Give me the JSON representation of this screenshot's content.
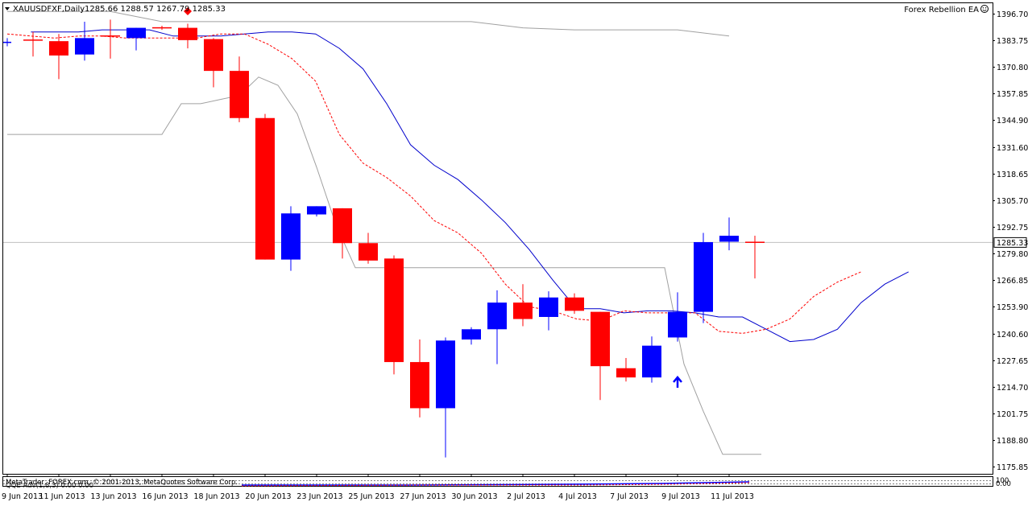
{
  "header": {
    "symbol_text": "XAUUSDFXF,Daily",
    "ohlc_text": "1285.66 1288.57 1267.79 1285.33",
    "ea_label": "Forex Rebellion EA"
  },
  "indicator": {
    "label": "QQE Adv(1,8,3) 0.00 0.00",
    "copyright": "MetaTrader, FOREX.com, © 2001-2013, MetaQuotes Software Corp.",
    "axis_top": "100",
    "axis_bottom": "0.00"
  },
  "colors": {
    "bear": "#ff0000",
    "bull": "#0000ff",
    "ma_solid": "#0000cc",
    "ma_dashed": "#ff0000",
    "envelope": "#a0a0a0",
    "grid_line": "#c0c0c0"
  },
  "chart_data": {
    "type": "candlestick",
    "y_ticks": [
      "1396.70",
      "1383.75",
      "1370.80",
      "1357.85",
      "1344.90",
      "1331.60",
      "1318.65",
      "1305.70",
      "1292.75",
      "1279.80",
      "1266.85",
      "1253.90",
      "1240.60",
      "1227.65",
      "1214.70",
      "1201.75",
      "1188.80",
      "1175.85"
    ],
    "x_labels": [
      "9 Jun 2013",
      "11 Jun 2013",
      "13 Jun 2013",
      "16 Jun 2013",
      "18 Jun 2013",
      "20 Jun 2013",
      "23 Jun 2013",
      "25 Jun 2013",
      "27 Jun 2013",
      "30 Jun 2013",
      "2 Jul 2013",
      "4 Jul 2013",
      "7 Jul 2013",
      "9 Jul 2013",
      "11 Jul 2013"
    ],
    "current_price": "1285.33",
    "ylim": [
      1172.5,
      1402
    ],
    "candles": [
      {
        "o": 1383.2,
        "h": 1385.0,
        "l": 1381.0,
        "c": 1383.2,
        "color": "bull"
      },
      {
        "o": 1384.0,
        "h": 1388.0,
        "l": 1376.0,
        "c": 1384.0,
        "color": "flat"
      },
      {
        "o": 1383.5,
        "h": 1387.0,
        "l": 1365.0,
        "c": 1376.5,
        "color": "bear"
      },
      {
        "o": 1377.0,
        "h": 1393.0,
        "l": 1374.0,
        "c": 1385.0,
        "color": "bull"
      },
      {
        "o": 1386.0,
        "h": 1394.0,
        "l": 1375.0,
        "c": 1386.0,
        "color": "flat"
      },
      {
        "o": 1385.0,
        "h": 1390.0,
        "l": 1379.0,
        "c": 1390.0,
        "color": "bull"
      },
      {
        "o": 1390.0,
        "h": 1391.0,
        "l": 1389.0,
        "c": 1390.0,
        "color": "flat"
      },
      {
        "o": 1390.0,
        "h": 1392.0,
        "l": 1380.0,
        "c": 1384.0,
        "color": "bear"
      },
      {
        "o": 1384.5,
        "h": 1385.0,
        "l": 1361.0,
        "c": 1369.0,
        "color": "bear"
      },
      {
        "o": 1369.0,
        "h": 1376.0,
        "l": 1344.0,
        "c": 1346.0,
        "color": "bear"
      },
      {
        "o": 1346.0,
        "h": 1348.0,
        "l": 1277.0,
        "c": 1277.0,
        "color": "bear"
      },
      {
        "o": 1277.0,
        "h": 1303.0,
        "l": 1271.5,
        "c": 1299.5,
        "color": "bull"
      },
      {
        "o": 1299.0,
        "h": 1303.0,
        "l": 1298.0,
        "c": 1303.0,
        "color": "bull"
      },
      {
        "o": 1302.0,
        "h": 1302.0,
        "l": 1277.5,
        "c": 1285.0,
        "color": "bear"
      },
      {
        "o": 1285.0,
        "h": 1290.0,
        "l": 1275.0,
        "c": 1276.5,
        "color": "bear"
      },
      {
        "o": 1277.5,
        "h": 1279.0,
        "l": 1221.0,
        "c": 1227.0,
        "color": "bear"
      },
      {
        "o": 1227.0,
        "h": 1238.0,
        "l": 1200.0,
        "c": 1204.5,
        "color": "bear"
      },
      {
        "o": 1204.5,
        "h": 1239.0,
        "l": 1180.5,
        "c": 1237.5,
        "color": "bull"
      },
      {
        "o": 1238.0,
        "h": 1244.0,
        "l": 1235.5,
        "c": 1243.0,
        "color": "bull"
      },
      {
        "o": 1243.0,
        "h": 1262.0,
        "l": 1226.0,
        "c": 1256.0,
        "color": "bull"
      },
      {
        "o": 1256.0,
        "h": 1265.0,
        "l": 1244.5,
        "c": 1248.0,
        "color": "bear"
      },
      {
        "o": 1249.0,
        "h": 1261.5,
        "l": 1242.5,
        "c": 1258.5,
        "color": "bull"
      },
      {
        "o": 1258.5,
        "h": 1260.5,
        "l": 1250.5,
        "c": 1252.0,
        "color": "bear"
      },
      {
        "o": 1251.5,
        "h": 1251.5,
        "l": 1208.5,
        "c": 1225.0,
        "color": "bear"
      },
      {
        "o": 1224.0,
        "h": 1229.0,
        "l": 1217.5,
        "c": 1219.5,
        "color": "bear"
      },
      {
        "o": 1219.5,
        "h": 1239.5,
        "l": 1217.0,
        "c": 1235.0,
        "color": "bull"
      },
      {
        "o": 1239.0,
        "h": 1261.0,
        "l": 1237.0,
        "c": 1251.5,
        "color": "bull"
      },
      {
        "o": 1251.5,
        "h": 1290.0,
        "l": 1246.0,
        "c": 1285.5,
        "color": "bull"
      },
      {
        "o": 1285.7,
        "h": 1297.5,
        "l": 1281.5,
        "c": 1288.6,
        "color": "bull"
      },
      {
        "o": 1285.7,
        "h": 1288.6,
        "l": 1267.8,
        "c": 1285.3,
        "color": "bear"
      }
    ],
    "ma_solid": [
      null,
      1388,
      1388,
      1388,
      1389,
      1389,
      1389,
      1386,
      1386,
      1386,
      1387,
      1388,
      1388,
      1387,
      1380,
      1370,
      1353,
      1333,
      1323,
      1316,
      1306,
      1295,
      1282,
      1267,
      1253,
      1253,
      1251,
      1252,
      1252,
      1251,
      1249,
      1249,
      1243,
      1237,
      1238,
      1243,
      1256,
      1265,
      1271
    ],
    "ma_dashed": [
      1387,
      1386,
      1385,
      1386,
      1386,
      1385,
      1385,
      1385,
      1385,
      1387,
      1387,
      1382,
      1375,
      1364,
      1338,
      1324,
      1317,
      1308,
      1296,
      1290,
      1280,
      1265,
      1254,
      1252,
      1248,
      1247,
      1252,
      1251,
      1251,
      1251,
      1242,
      1241,
      1243,
      1248,
      1259,
      1266,
      1271
    ],
    "envelope_upper": [
      1398,
      1398,
      1398,
      1393,
      1393,
      1393,
      1393,
      1393,
      1393,
      1393,
      1390,
      1389,
      1389,
      1389,
      1386
    ],
    "envelope_lower": [
      1338,
      1338,
      1338,
      1338,
      1338,
      1338,
      1338,
      1338,
      1338,
      1353,
      1353,
      1355,
      1357,
      1366,
      1362,
      1348,
      1322,
      1294,
      1273,
      1273,
      1273,
      1273,
      1273,
      1273,
      1273,
      1273,
      1273,
      1273,
      1273,
      1273,
      1273,
      1273,
      1273,
      1273,
      1273,
      1226,
      1203,
      1182,
      1182,
      1182
    ],
    "buy_arrow_index": 26,
    "sell_marker_index": 7
  }
}
